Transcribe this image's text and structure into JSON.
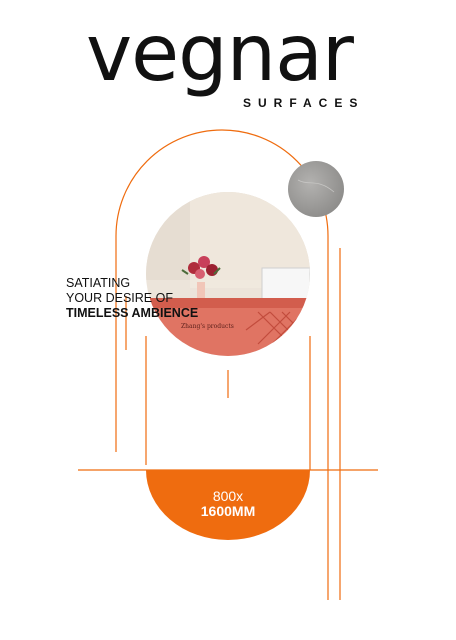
{
  "brand": {
    "name": "vegnar",
    "subtitle": "SURFACES"
  },
  "tagline": {
    "line1": "SATIATING",
    "line2": "YOUR DESIRE OF",
    "line3": "TIMELESS AMBIENCE"
  },
  "photo": {
    "desk_text": "Zhang's products"
  },
  "size_badge": {
    "line1": "800x",
    "line2": "1600MM"
  },
  "colors": {
    "accent": "#ef6c0f",
    "text": "#111111",
    "marble": "#9b9a98"
  }
}
